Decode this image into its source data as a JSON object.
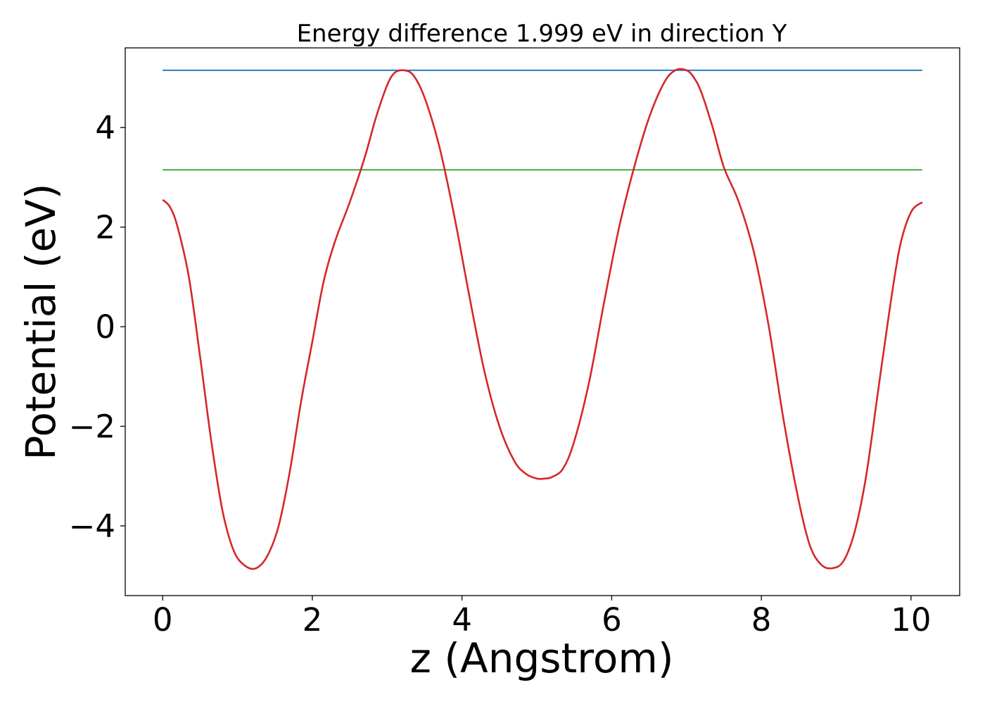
{
  "chart_data": {
    "type": "line",
    "title": "Energy difference 1.999 eV in direction Y",
    "xlabel": "z (Angstrom)",
    "ylabel": "Potential (eV)",
    "xlim": [
      -0.5,
      10.65
    ],
    "ylim": [
      -5.4,
      5.6
    ],
    "xticks": [
      0,
      2,
      4,
      6,
      8,
      10
    ],
    "xtick_labels": [
      "0",
      "2",
      "4",
      "6",
      "8",
      "10"
    ],
    "yticks": [
      -4,
      -2,
      0,
      2,
      4
    ],
    "ytick_labels": [
      "−4",
      "−2",
      "0",
      "2",
      "4"
    ],
    "grid": false,
    "legend": "none",
    "series": [
      {
        "color": "#d62728",
        "x": [
          0,
          0.1,
          0.2,
          0.35,
          0.5,
          0.65,
          0.8,
          0.95,
          1.1,
          1.25,
          1.4,
          1.55,
          1.7,
          1.85,
          2.0,
          2.15,
          2.3,
          2.5,
          2.7,
          2.85,
          3.0,
          3.1,
          3.22,
          3.35,
          3.5,
          3.7,
          3.9,
          4.1,
          4.3,
          4.5,
          4.7,
          4.85,
          5.0,
          5.1,
          5.2,
          5.35,
          5.5,
          5.7,
          5.9,
          6.1,
          6.3,
          6.5,
          6.7,
          6.85,
          7.0,
          7.1,
          7.2,
          7.35,
          7.5,
          7.7,
          7.9,
          8.1,
          8.3,
          8.5,
          8.65,
          8.8,
          8.95,
          9.1,
          9.25,
          9.4,
          9.55,
          9.7,
          9.85,
          10.0,
          10.15
        ],
        "y": [
          2.55,
          2.4,
          2.0,
          1.0,
          -0.6,
          -2.3,
          -3.7,
          -4.5,
          -4.8,
          -4.85,
          -4.6,
          -4.0,
          -2.9,
          -1.5,
          -0.3,
          0.9,
          1.7,
          2.5,
          3.4,
          4.2,
          4.85,
          5.1,
          5.15,
          5.05,
          4.6,
          3.6,
          2.2,
          0.6,
          -0.9,
          -2.0,
          -2.7,
          -2.95,
          -3.05,
          -3.05,
          -3.02,
          -2.85,
          -2.3,
          -1.1,
          0.5,
          2.0,
          3.2,
          4.2,
          4.9,
          5.15,
          5.15,
          5.0,
          4.7,
          4.0,
          3.2,
          2.5,
          1.5,
          0.0,
          -1.9,
          -3.5,
          -4.4,
          -4.78,
          -4.85,
          -4.7,
          -4.1,
          -3.0,
          -1.4,
          0.2,
          1.6,
          2.3,
          2.5
        ]
      },
      {
        "color": "#1f77b4",
        "x": [
          0,
          10.15
        ],
        "y": [
          5.15,
          5.15
        ]
      },
      {
        "color": "#2ca02c",
        "x": [
          0,
          10.15
        ],
        "y": [
          3.15,
          3.15
        ]
      }
    ]
  }
}
